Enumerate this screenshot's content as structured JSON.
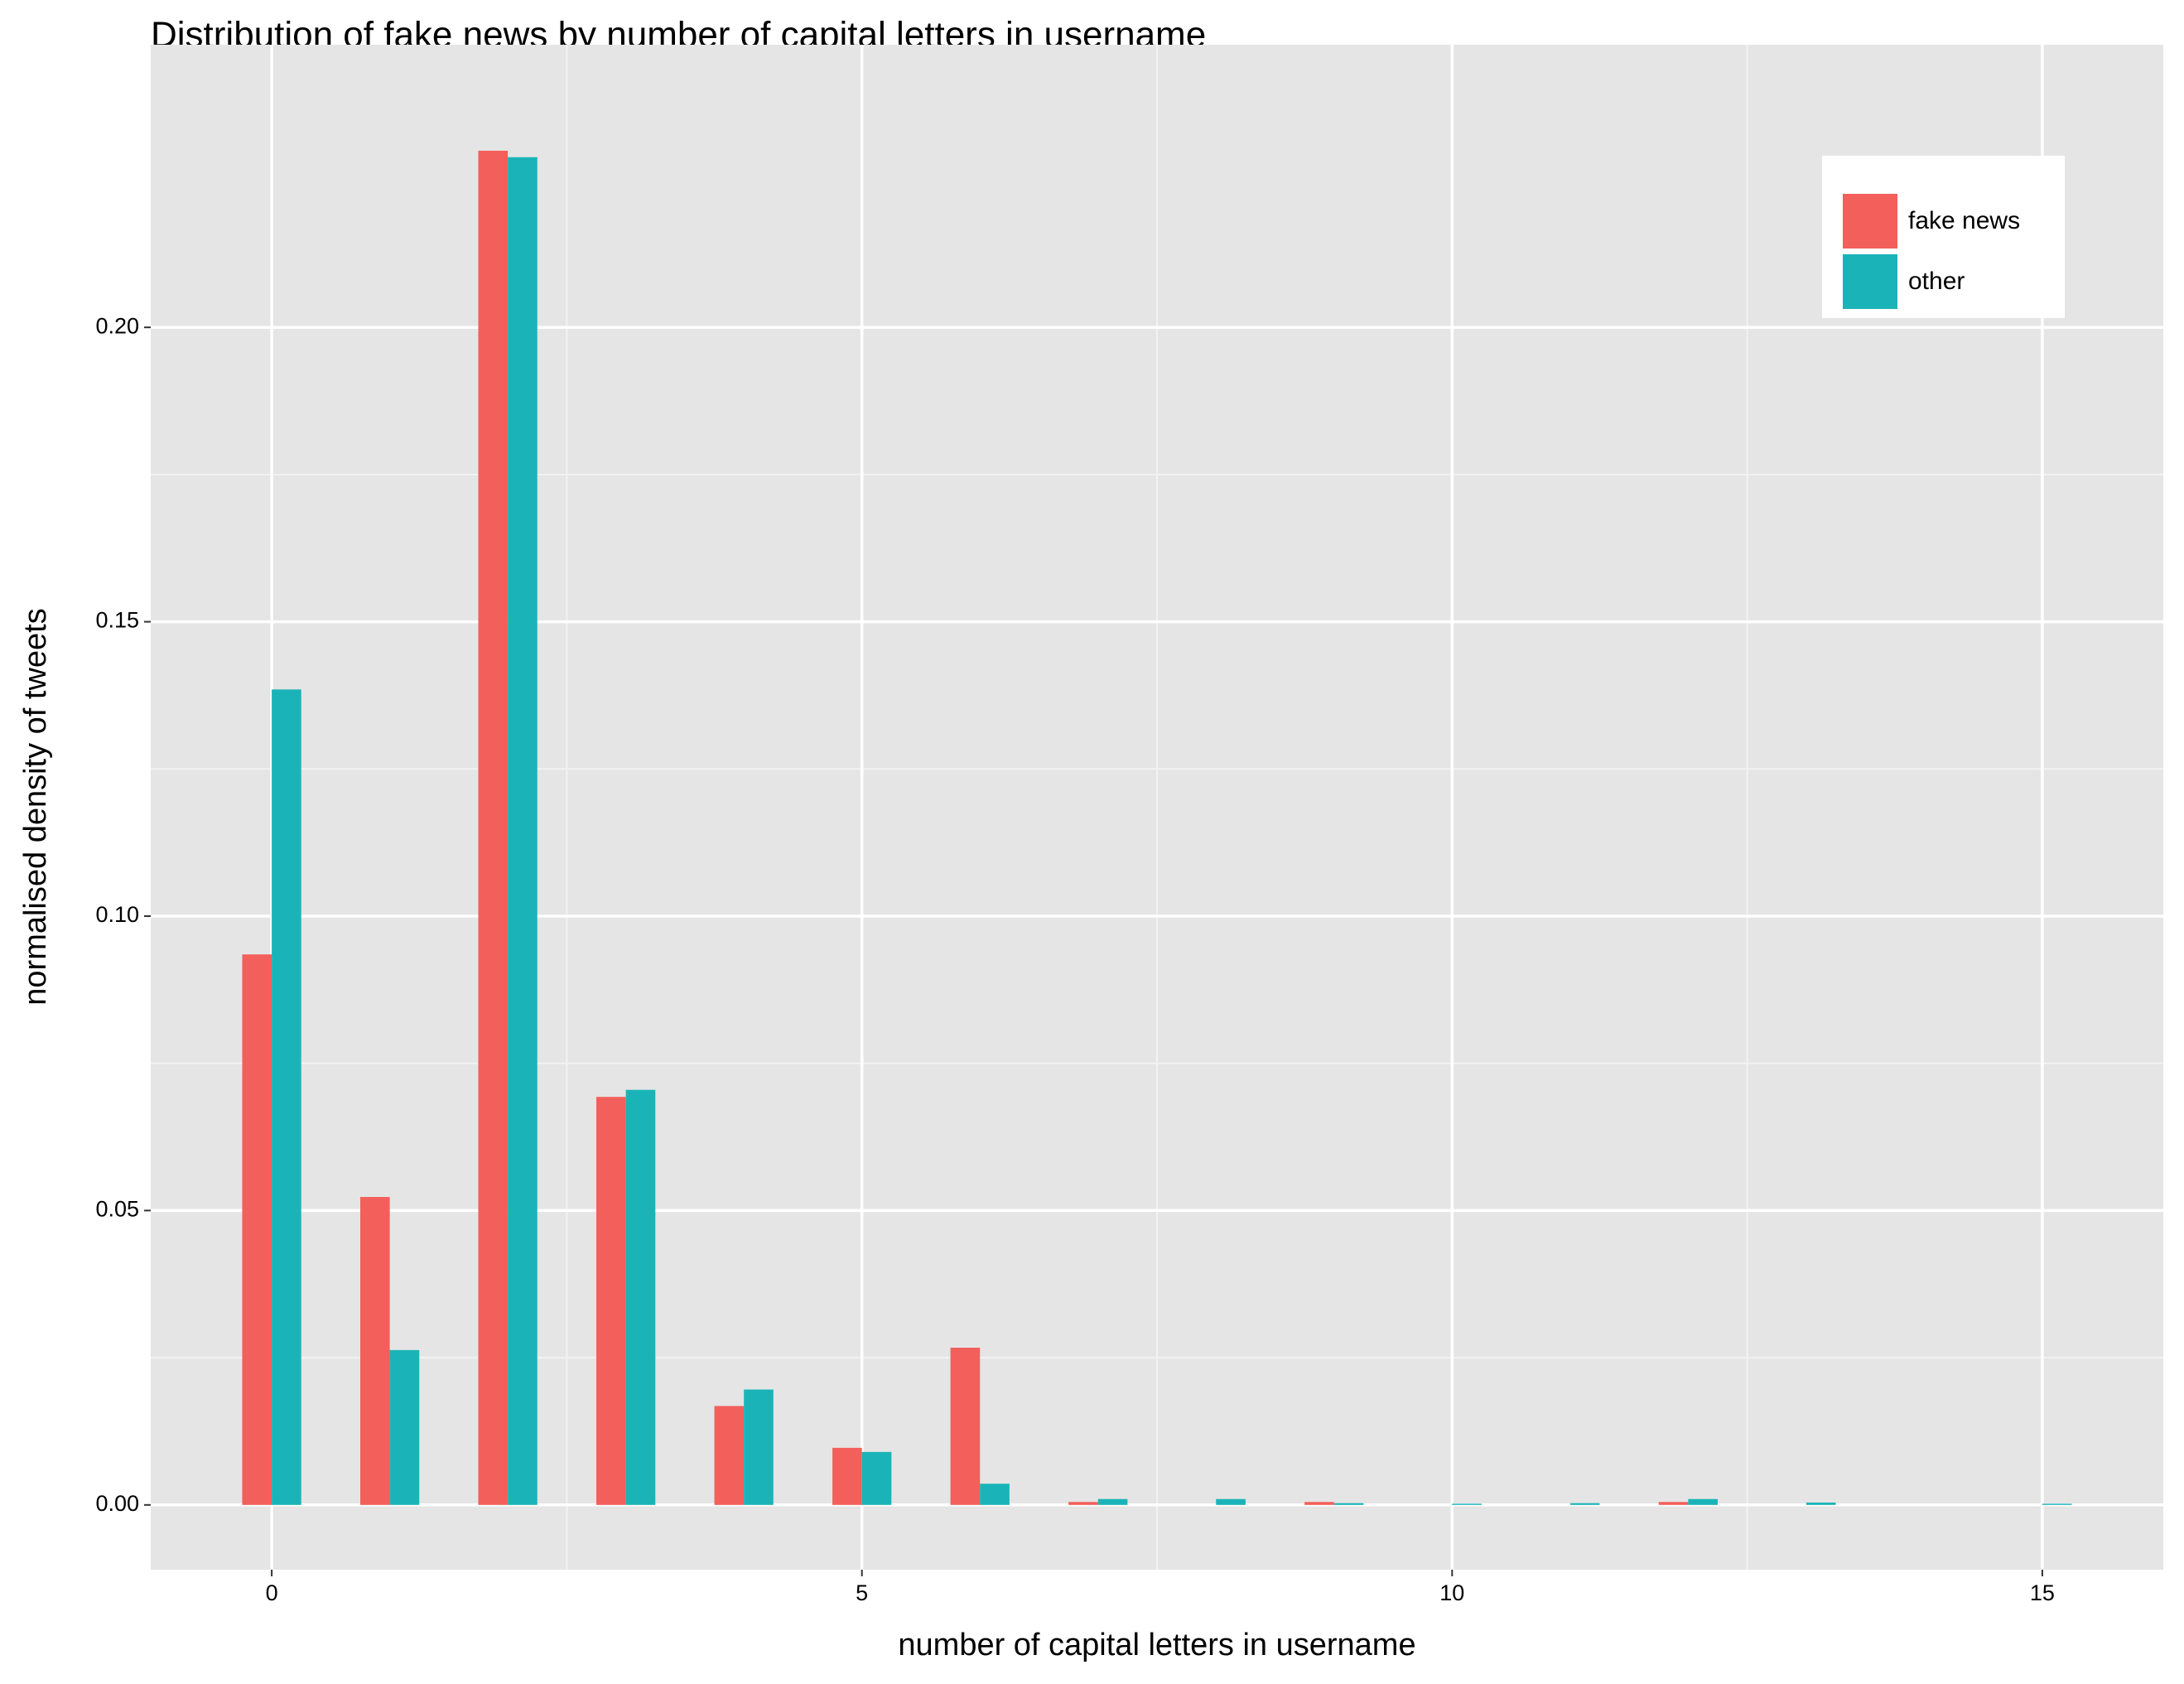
{
  "chart_data": {
    "type": "bar",
    "title": "Distribution of fake news by number of capital letters in username",
    "x_label": "number of capital letters in username",
    "y_label": "normalised density of tweets",
    "x": [
      0,
      1,
      2,
      3,
      4,
      5,
      6,
      7,
      8,
      9,
      10,
      11,
      12,
      13,
      14,
      15
    ],
    "series": [
      {
        "name": "fake news",
        "color": "#f35f5a",
        "values": [
          0.0935,
          0.0523,
          0.23,
          0.0693,
          0.0168,
          0.0097,
          0.0267,
          0.0005,
          0,
          0.0005,
          0,
          0,
          0.0005,
          0,
          0,
          0
        ]
      },
      {
        "name": "other",
        "color": "#1ab4b8",
        "values": [
          0.1385,
          0.0263,
          0.2289,
          0.0705,
          0.0196,
          0.009,
          0.0036,
          0.001,
          0.001,
          0.0003,
          0.0002,
          0.0003,
          0.001,
          0.0004,
          0,
          0.0002
        ]
      }
    ],
    "xlim": [
      -1.025,
      16.025
    ],
    "xticks": [
      0,
      5,
      10,
      15
    ],
    "ylim": [
      -0.011,
      0.248
    ],
    "yticks": [
      {
        "value": 0,
        "label": "0.00"
      },
      {
        "value": 0.05,
        "label": "0.05"
      },
      {
        "value": 0.1,
        "label": "0.10"
      },
      {
        "value": 0.15,
        "label": "0.15"
      },
      {
        "value": 0.2,
        "label": "0.20"
      }
    ],
    "grid": true,
    "legend": "top-right"
  }
}
